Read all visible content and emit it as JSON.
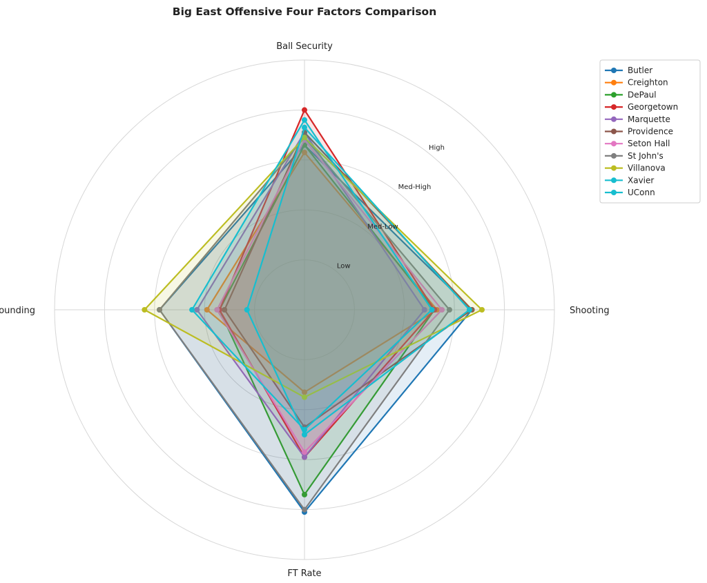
{
  "chart_data": {
    "type": "radar",
    "title": "Big East Offensive Four Factors Comparison",
    "axes": [
      "Ball Security",
      "Shooting",
      "FT Rate",
      "Off Rebounding"
    ],
    "rlim": [
      0,
      5
    ],
    "ring_labels": [
      "Low",
      "Med-Low",
      "Med-High",
      "High"
    ],
    "grid": true,
    "legend_position": "top-right outside",
    "series": [
      {
        "name": "Butler",
        "color": "#1f77b4",
        "values": [
          3.3,
          3.35,
          4.05,
          2.9
        ]
      },
      {
        "name": "Creighton",
        "color": "#ff7f0e",
        "values": [
          3.15,
          2.65,
          1.65,
          1.95
        ]
      },
      {
        "name": "DePaul",
        "color": "#2ca02c",
        "values": [
          3.3,
          2.6,
          3.7,
          1.7
        ]
      },
      {
        "name": "Georgetown",
        "color": "#d62728",
        "values": [
          4.0,
          2.6,
          2.95,
          1.7
        ]
      },
      {
        "name": "Marquette",
        "color": "#9467bd",
        "values": [
          3.55,
          2.4,
          2.95,
          2.15
        ]
      },
      {
        "name": "Providence",
        "color": "#8c564b",
        "values": [
          3.55,
          3.35,
          2.35,
          1.6
        ]
      },
      {
        "name": "Seton Hall",
        "color": "#e377c2",
        "values": [
          3.4,
          2.75,
          2.85,
          1.75
        ]
      },
      {
        "name": "St John's",
        "color": "#7f7f7f",
        "values": [
          3.45,
          2.9,
          4.0,
          2.9
        ]
      },
      {
        "name": "Villanova",
        "color": "#bcbd22",
        "values": [
          3.45,
          3.55,
          1.75,
          3.2
        ]
      },
      {
        "name": "Xavier",
        "color": "#17becf",
        "values": [
          3.8,
          2.55,
          2.4,
          2.25
        ]
      },
      {
        "name": "UConn",
        "color": "#17becf",
        "values": [
          3.65,
          3.3,
          2.5,
          1.15
        ]
      }
    ]
  }
}
